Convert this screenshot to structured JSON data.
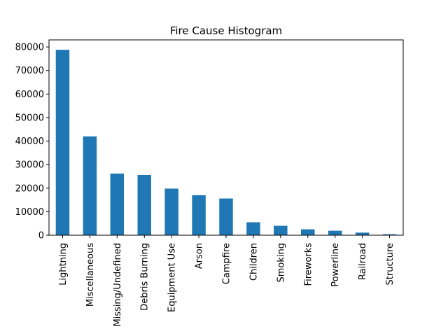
{
  "chart_data": {
    "type": "bar",
    "title": "Fire Cause Histogram",
    "xlabel": "",
    "ylabel": "",
    "categories": [
      "Lightning",
      "Miscellaneous",
      "Missing/Undefined",
      "Debris Burning",
      "Equipment Use",
      "Arson",
      "Campfire",
      "Children",
      "Smoking",
      "Fireworks",
      "Powerline",
      "Railroad",
      "Structure"
    ],
    "values": [
      78800,
      42000,
      26200,
      25600,
      19800,
      17000,
      15600,
      5500,
      4000,
      2500,
      1900,
      1100,
      400
    ],
    "ylim": [
      0,
      83000
    ],
    "yticks": [
      0,
      10000,
      20000,
      30000,
      40000,
      50000,
      60000,
      70000,
      80000
    ],
    "bar_color": "#1f77b4",
    "grid": false,
    "legend": "none"
  }
}
